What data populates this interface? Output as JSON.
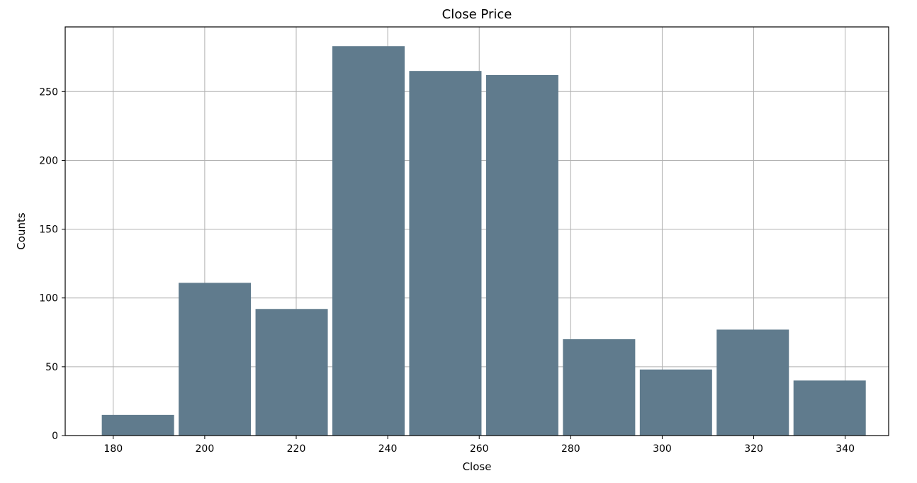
{
  "chart_data": {
    "type": "bar",
    "title": "Close Price",
    "xlabel": "Close",
    "ylabel": "Counts",
    "bins": [
      [
        177.5,
        193.3
      ],
      [
        194.3,
        210.1
      ],
      [
        211.1,
        226.9
      ],
      [
        227.9,
        243.7
      ],
      [
        244.7,
        260.5
      ],
      [
        261.5,
        277.3
      ],
      [
        278.3,
        294.1
      ],
      [
        295.1,
        310.9
      ],
      [
        311.9,
        327.7
      ],
      [
        328.7,
        344.5
      ]
    ],
    "values": [
      15,
      111,
      92,
      283,
      265,
      262,
      70,
      48,
      77,
      40
    ],
    "xticks": [
      180,
      200,
      220,
      240,
      260,
      280,
      300,
      320,
      340
    ],
    "yticks": [
      0,
      50,
      100,
      150,
      200,
      250
    ],
    "xlim": [
      169.5,
      349.5
    ],
    "ylim": [
      0,
      297
    ],
    "grid": true,
    "colors": {
      "bar": "#607b8d",
      "grid": "#b0b0b0",
      "axis": "#000000"
    }
  }
}
